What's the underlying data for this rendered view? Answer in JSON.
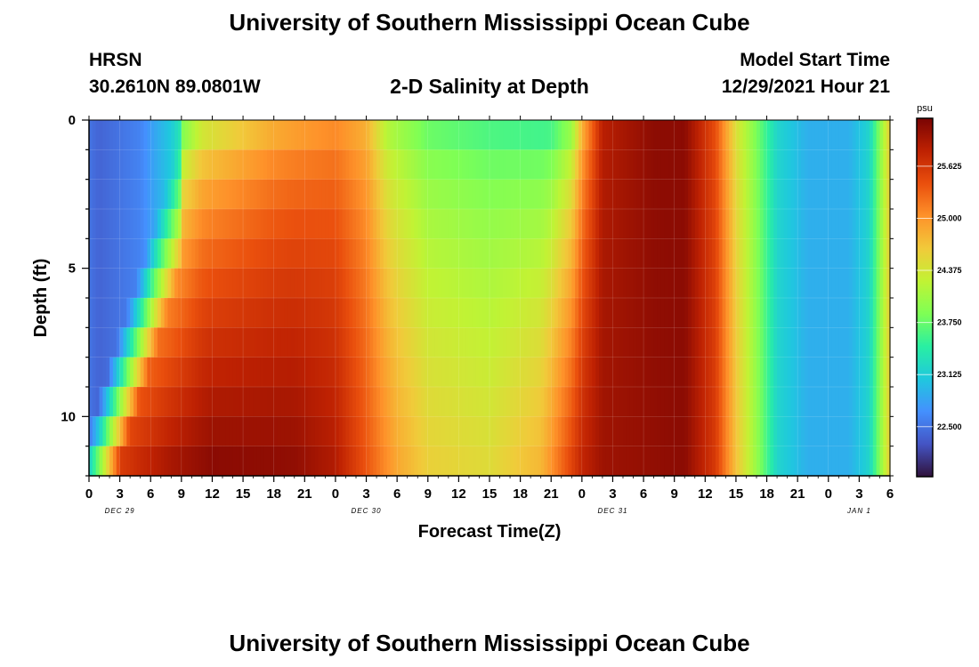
{
  "header": {
    "title": "University of Southern Mississippi Ocean Cube",
    "station": "HRSN",
    "coords": "30.2610N  89.0801W",
    "subtitle": "2-D Salinity at Depth",
    "start_label": "Model Start Time",
    "start_value": "12/29/2021 Hour 21"
  },
  "footer": {
    "title": "University of Southern Mississippi Ocean Cube"
  },
  "chart_data": {
    "type": "heatmap",
    "title": "2-D Salinity at Depth",
    "xlabel": "Forecast Time(Z)",
    "ylabel": "Depth (ft)",
    "x_range_hours": [
      0,
      78
    ],
    "y_range_ft": [
      0,
      12
    ],
    "x_ticks": [
      "0",
      "3",
      "6",
      "9",
      "12",
      "15",
      "18",
      "21",
      "0",
      "3",
      "6",
      "9",
      "12",
      "15",
      "18",
      "21",
      "0",
      "3",
      "6",
      "9",
      "12",
      "15",
      "18",
      "21",
      "0",
      "3",
      "6"
    ],
    "y_ticks": [
      "0",
      "5",
      "10"
    ],
    "day_labels": [
      "DEC 29",
      "DEC 30",
      "DEC 31",
      "JAN 1"
    ],
    "colorbar": {
      "unit": "psu",
      "min": 21.9,
      "max": 26.2,
      "ticks": [
        "22.500",
        "23.125",
        "23.750",
        "24.375",
        "25.000",
        "25.625"
      ],
      "tick_values": [
        22.5,
        23.125,
        23.75,
        24.375,
        25.0,
        25.625
      ],
      "colors": [
        "#30123b",
        "#4454c4",
        "#4490fe",
        "#1fc8de",
        "#29efa2",
        "#7eff55",
        "#c1f334",
        "#f1ca3a",
        "#fe922a",
        "#ea4f0d",
        "#be2102",
        "#7a0403"
      ]
    },
    "grid": true
  }
}
